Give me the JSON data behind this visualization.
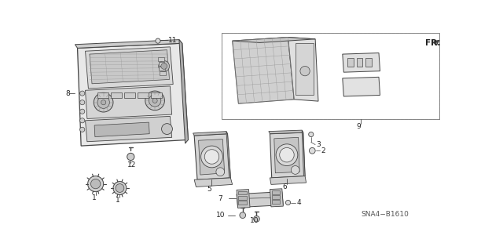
{
  "background_color": "#ffffff",
  "diagram_id": "SNA4-B1610",
  "line_color": "#444444",
  "text_color": "#222222",
  "gray_fill": "#cccccc",
  "light_gray": "#e8e8e8",
  "mid_gray": "#b0b0b0",
  "label_line_color": "#333333"
}
